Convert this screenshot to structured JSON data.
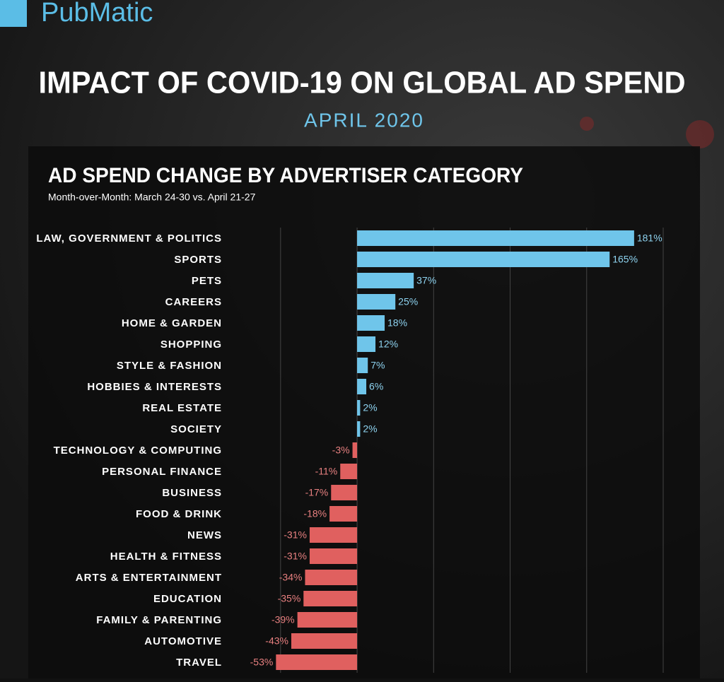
{
  "header": {
    "logo": "PubMatic",
    "title": "IMPACT OF COVID-19 ON GLOBAL AD SPEND",
    "subtitle": "APRIL 2020"
  },
  "chart_data": {
    "type": "hbar",
    "title": "AD SPEND CHANGE BY ADVERTISER CATEGORY",
    "subtitle": "Month-over-Month: March 24-30 vs. April 21-27",
    "categories": [
      "LAW, GOVERNMENT & POLITICS",
      "SPORTS",
      "PETS",
      "CAREERS",
      "HOME & GARDEN",
      "SHOPPING",
      "STYLE & FASHION",
      "HOBBIES & INTERESTS",
      "REAL ESTATE",
      "SOCIETY",
      "TECHNOLOGY & COMPUTING",
      "PERSONAL FINANCE",
      "BUSINESS",
      "FOOD & DRINK",
      "NEWS",
      "HEALTH & FITNESS",
      "ARTS & ENTERTAINMENT",
      "EDUCATION",
      "FAMILY & PARENTING",
      "AUTOMOTIVE",
      "TRAVEL"
    ],
    "values": [
      181,
      165,
      37,
      25,
      18,
      12,
      7,
      6,
      2,
      2,
      -3,
      -11,
      -17,
      -18,
      -31,
      -31,
      -34,
      -35,
      -39,
      -43,
      -53
    ],
    "value_labels": [
      "181%",
      "165%",
      "37%",
      "25%",
      "18%",
      "12%",
      "7%",
      "6%",
      "2%",
      "2%",
      "-3%",
      "-11%",
      "-17%",
      "-18%",
      "-31%",
      "-31%",
      "-34%",
      "-35%",
      "-39%",
      "-43%",
      "-53%"
    ],
    "color_positive": "#6fc5ea",
    "color_negative": "#e0605f",
    "xlim": [
      -55,
      200
    ],
    "xticks": [
      -50,
      0,
      50,
      100,
      150,
      200
    ],
    "grid": true
  }
}
